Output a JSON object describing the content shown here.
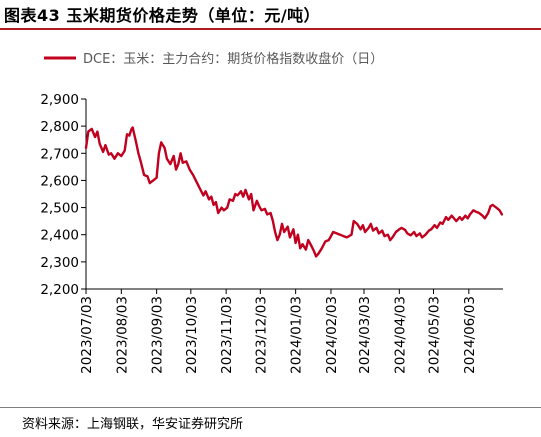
{
  "title": "图表43  玉米期货价格走势（单位：元/吨）",
  "source": "资料来源：上海钢联，华安证券研究所",
  "colors": {
    "accent": "#b11a1a",
    "line": "#c0001e",
    "axis": "#000000"
  },
  "chart_data": {
    "type": "line",
    "title": "",
    "xlabel": "",
    "ylabel": "",
    "ylim": [
      2200,
      2900
    ],
    "yticks": [
      2200,
      2300,
      2400,
      2500,
      2600,
      2700,
      2800,
      2900
    ],
    "ytick_labels": [
      "2,200",
      "2,300",
      "2,400",
      "2,500",
      "2,600",
      "2,700",
      "2,800",
      "2,900"
    ],
    "xtick_labels": [
      "2023/07/03",
      "2023/08/03",
      "2023/09/03",
      "2023/10/03",
      "2023/11/03",
      "2023/12/03",
      "2024/01/03",
      "2024/02/03",
      "2024/03/03",
      "2024/04/03",
      "2024/05/03",
      "2024/06/03"
    ],
    "xtick_dates": [
      "2023-07-03",
      "2023-08-03",
      "2023-09-03",
      "2023-10-03",
      "2023-11-03",
      "2023-12-03",
      "2024-01-03",
      "2024-02-03",
      "2024-03-03",
      "2024-04-03",
      "2024-05-03",
      "2024-06-03"
    ],
    "xrange": [
      "2023-07-03",
      "2024-07-03"
    ],
    "legend": "top",
    "grid": false,
    "series": [
      {
        "name": "DCE：玉米：主力合约：期货价格指数收盘价（日）",
        "color": "#c0001e",
        "points": [
          [
            "2023-07-03",
            2720
          ],
          [
            "2023-07-05",
            2780
          ],
          [
            "2023-07-08",
            2790
          ],
          [
            "2023-07-11",
            2760
          ],
          [
            "2023-07-13",
            2780
          ],
          [
            "2023-07-15",
            2735
          ],
          [
            "2023-07-18",
            2705
          ],
          [
            "2023-07-20",
            2730
          ],
          [
            "2023-07-23",
            2695
          ],
          [
            "2023-07-25",
            2700
          ],
          [
            "2023-07-28",
            2680
          ],
          [
            "2023-07-31",
            2700
          ],
          [
            "2023-08-03",
            2690
          ],
          [
            "2023-08-06",
            2710
          ],
          [
            "2023-08-08",
            2770
          ],
          [
            "2023-08-10",
            2765
          ],
          [
            "2023-08-12",
            2790
          ],
          [
            "2023-08-13",
            2795
          ],
          [
            "2023-08-16",
            2740
          ],
          [
            "2023-08-18",
            2700
          ],
          [
            "2023-08-20",
            2670
          ],
          [
            "2023-08-23",
            2620
          ],
          [
            "2023-08-26",
            2615
          ],
          [
            "2023-08-28",
            2590
          ],
          [
            "2023-08-31",
            2600
          ],
          [
            "2023-09-03",
            2610
          ],
          [
            "2023-09-05",
            2700
          ],
          [
            "2023-09-07",
            2740
          ],
          [
            "2023-09-10",
            2720
          ],
          [
            "2023-09-12",
            2680
          ],
          [
            "2023-09-15",
            2660
          ],
          [
            "2023-09-18",
            2690
          ],
          [
            "2023-09-20",
            2640
          ],
          [
            "2023-09-22",
            2660
          ],
          [
            "2023-09-24",
            2700
          ],
          [
            "2023-09-26",
            2665
          ],
          [
            "2023-09-29",
            2670
          ],
          [
            "2023-10-02",
            2640
          ],
          [
            "2023-10-05",
            2620
          ],
          [
            "2023-10-08",
            2595
          ],
          [
            "2023-10-11",
            2570
          ],
          [
            "2023-10-14",
            2545
          ],
          [
            "2023-10-16",
            2560
          ],
          [
            "2023-10-19",
            2530
          ],
          [
            "2023-10-21",
            2540
          ],
          [
            "2023-10-23",
            2510
          ],
          [
            "2023-10-25",
            2520
          ],
          [
            "2023-10-27",
            2480
          ],
          [
            "2023-10-30",
            2500
          ],
          [
            "2023-11-01",
            2490
          ],
          [
            "2023-11-04",
            2500
          ],
          [
            "2023-11-06",
            2530
          ],
          [
            "2023-11-09",
            2525
          ],
          [
            "2023-11-11",
            2550
          ],
          [
            "2023-11-13",
            2545
          ],
          [
            "2023-11-16",
            2560
          ],
          [
            "2023-11-18",
            2540
          ],
          [
            "2023-11-20",
            2565
          ],
          [
            "2023-11-23",
            2530
          ],
          [
            "2023-11-25",
            2550
          ],
          [
            "2023-11-27",
            2490
          ],
          [
            "2023-11-30",
            2525
          ],
          [
            "2023-12-02",
            2505
          ],
          [
            "2023-12-04",
            2490
          ],
          [
            "2023-12-07",
            2495
          ],
          [
            "2023-12-09",
            2475
          ],
          [
            "2023-12-12",
            2480
          ],
          [
            "2023-12-14",
            2450
          ],
          [
            "2023-12-16",
            2410
          ],
          [
            "2023-12-18",
            2380
          ],
          [
            "2023-12-20",
            2400
          ],
          [
            "2023-12-22",
            2440
          ],
          [
            "2023-12-24",
            2410
          ],
          [
            "2023-12-27",
            2430
          ],
          [
            "2023-12-29",
            2390
          ],
          [
            "2024-01-01",
            2420
          ],
          [
            "2024-01-03",
            2370
          ],
          [
            "2024-01-05",
            2400
          ],
          [
            "2024-01-07",
            2350
          ],
          [
            "2024-01-09",
            2365
          ],
          [
            "2024-01-12",
            2345
          ],
          [
            "2024-01-14",
            2380
          ],
          [
            "2024-01-16",
            2365
          ],
          [
            "2024-01-19",
            2340
          ],
          [
            "2024-01-21",
            2320
          ],
          [
            "2024-01-23",
            2330
          ],
          [
            "2024-01-26",
            2350
          ],
          [
            "2024-01-29",
            2375
          ],
          [
            "2024-02-01",
            2380
          ],
          [
            "2024-02-03",
            2395
          ],
          [
            "2024-02-05",
            2410
          ],
          [
            "2024-02-08",
            2405
          ],
          [
            "2024-02-11",
            2400
          ],
          [
            "2024-02-14",
            2395
          ],
          [
            "2024-02-17",
            2390
          ],
          [
            "2024-02-21",
            2400
          ],
          [
            "2024-02-23",
            2450
          ],
          [
            "2024-02-26",
            2440
          ],
          [
            "2024-02-29",
            2420
          ],
          [
            "2024-03-02",
            2435
          ],
          [
            "2024-03-04",
            2410
          ],
          [
            "2024-03-07",
            2425
          ],
          [
            "2024-03-09",
            2440
          ],
          [
            "2024-03-11",
            2415
          ],
          [
            "2024-03-14",
            2425
          ],
          [
            "2024-03-16",
            2405
          ],
          [
            "2024-03-19",
            2415
          ],
          [
            "2024-03-21",
            2395
          ],
          [
            "2024-03-24",
            2400
          ],
          [
            "2024-03-26",
            2380
          ],
          [
            "2024-03-28",
            2390
          ],
          [
            "2024-03-31",
            2410
          ],
          [
            "2024-04-03",
            2420
          ],
          [
            "2024-04-05",
            2425
          ],
          [
            "2024-04-08",
            2418
          ],
          [
            "2024-04-10",
            2405
          ],
          [
            "2024-04-13",
            2398
          ],
          [
            "2024-04-16",
            2410
          ],
          [
            "2024-04-18",
            2395
          ],
          [
            "2024-04-21",
            2405
          ],
          [
            "2024-04-23",
            2390
          ],
          [
            "2024-04-26",
            2400
          ],
          [
            "2024-04-29",
            2415
          ],
          [
            "2024-05-01",
            2420
          ],
          [
            "2024-05-04",
            2435
          ],
          [
            "2024-05-06",
            2425
          ],
          [
            "2024-05-09",
            2445
          ],
          [
            "2024-05-11",
            2440
          ],
          [
            "2024-05-14",
            2465
          ],
          [
            "2024-05-16",
            2455
          ],
          [
            "2024-05-19",
            2470
          ],
          [
            "2024-05-21",
            2460
          ],
          [
            "2024-05-23",
            2450
          ],
          [
            "2024-05-26",
            2465
          ],
          [
            "2024-05-28",
            2455
          ],
          [
            "2024-05-31",
            2470
          ],
          [
            "2024-06-02",
            2460
          ],
          [
            "2024-06-04",
            2475
          ],
          [
            "2024-06-07",
            2490
          ],
          [
            "2024-06-09",
            2485
          ],
          [
            "2024-06-12",
            2480
          ],
          [
            "2024-06-15",
            2470
          ],
          [
            "2024-06-17",
            2460
          ],
          [
            "2024-06-20",
            2480
          ],
          [
            "2024-06-22",
            2505
          ],
          [
            "2024-06-24",
            2510
          ],
          [
            "2024-06-27",
            2500
          ],
          [
            "2024-06-30",
            2490
          ],
          [
            "2024-07-02",
            2475
          ]
        ]
      }
    ]
  }
}
